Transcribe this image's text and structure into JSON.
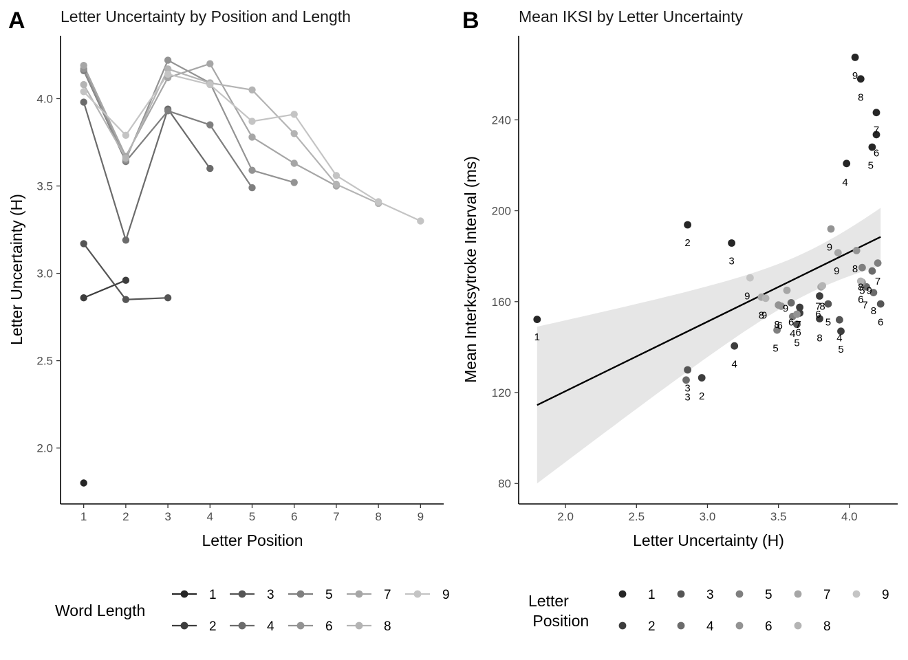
{
  "chart_data": [
    {
      "type": "line",
      "panel_label": "A",
      "title": "Letter Uncertainty by Position and Length",
      "xlabel": "Letter Position",
      "ylabel": "Letter Uncertainty (H)",
      "xlim": [
        0.45,
        9.55
      ],
      "ylim": [
        1.68,
        4.36
      ],
      "x_ticks": [
        1,
        2,
        3,
        4,
        5,
        6,
        7,
        8,
        9
      ],
      "y_ticks": [
        2.0,
        2.5,
        3.0,
        3.5,
        4.0
      ],
      "y_tick_labels": [
        "2.0",
        "2.5",
        "3.0",
        "3.5",
        "4.0"
      ],
      "grid": false,
      "legend_title": "Word Length",
      "legend_position": "bottom",
      "series": [
        {
          "name": "1",
          "color": "#262626",
          "x": [
            1
          ],
          "y": [
            1.8
          ]
        },
        {
          "name": "2",
          "color": "#3d3d3d",
          "x": [
            1,
            2
          ],
          "y": [
            2.86,
            2.96
          ]
        },
        {
          "name": "3",
          "color": "#555555",
          "x": [
            1,
            2,
            3
          ],
          "y": [
            3.17,
            2.85,
            2.86
          ]
        },
        {
          "name": "4",
          "color": "#6b6b6b",
          "x": [
            1,
            2,
            3,
            4
          ],
          "y": [
            3.98,
            3.19,
            3.94,
            3.6
          ]
        },
        {
          "name": "5",
          "color": "#7f7f7f",
          "x": [
            1,
            2,
            3,
            4,
            5
          ],
          "y": [
            4.16,
            3.64,
            3.93,
            3.85,
            3.49
          ]
        },
        {
          "name": "6",
          "color": "#939393",
          "x": [
            1,
            2,
            3,
            4,
            5,
            6
          ],
          "y": [
            4.17,
            3.65,
            4.22,
            4.09,
            3.59,
            3.52
          ]
        },
        {
          "name": "7",
          "color": "#a6a6a6",
          "x": [
            1,
            2,
            3,
            4,
            5,
            6,
            7
          ],
          "y": [
            4.19,
            3.67,
            4.12,
            4.2,
            3.78,
            3.63,
            3.5
          ]
        },
        {
          "name": "8",
          "color": "#b4b4b4",
          "x": [
            1,
            2,
            3,
            4,
            5,
            6,
            7,
            8
          ],
          "y": [
            4.08,
            3.66,
            4.17,
            4.09,
            4.05,
            3.8,
            3.51,
            3.4
          ]
        },
        {
          "name": "9",
          "color": "#c4c4c4",
          "x": [
            1,
            2,
            3,
            4,
            5,
            6,
            7,
            8,
            9
          ],
          "y": [
            4.04,
            3.79,
            4.14,
            4.08,
            3.87,
            3.91,
            3.56,
            3.41,
            3.3
          ]
        }
      ]
    },
    {
      "type": "scatter",
      "panel_label": "B",
      "title": "Mean IKSI by Letter Uncertainty",
      "xlabel": "Letter Uncertainty (H)",
      "ylabel": "Mean Interksytroke Interval (ms)",
      "xlim": [
        1.67,
        4.34
      ],
      "ylim": [
        71,
        277
      ],
      "x_ticks": [
        2.0,
        2.5,
        3.0,
        3.5,
        4.0
      ],
      "x_tick_labels": [
        "2.0",
        "2.5",
        "3.0",
        "3.5",
        "4.0"
      ],
      "y_ticks": [
        80,
        120,
        160,
        200,
        240
      ],
      "grid": false,
      "legend_title": "Letter\n Position",
      "legend_position": "bottom",
      "position_colors": {
        "1": "#262626",
        "2": "#3d3d3d",
        "3": "#555555",
        "4": "#6b6b6b",
        "5": "#7f7f7f",
        "6": "#939393",
        "7": "#a6a6a6",
        "8": "#b4b4b4",
        "9": "#c4c4c4"
      },
      "regression": {
        "x": [
          1.8,
          4.22
        ],
        "y": [
          114.5,
          188.5
        ],
        "ci_lower": [
          80.0,
          176.0
        ],
        "ci_upper": [
          149.0,
          201.5
        ]
      },
      "points": [
        {
          "x": 1.8,
          "y": 152.2,
          "pos": 1,
          "color": "#262626"
        },
        {
          "x": 2.86,
          "y": 193.8,
          "pos": 2,
          "color": "#262626"
        },
        {
          "x": 3.17,
          "y": 185.8,
          "pos": 3,
          "color": "#262626"
        },
        {
          "x": 3.98,
          "y": 220.8,
          "pos": 4,
          "color": "#262626"
        },
        {
          "x": 4.16,
          "y": 228.0,
          "pos": 5,
          "color": "#262626"
        },
        {
          "x": 4.19,
          "y": 233.5,
          "pos": 6,
          "color": "#262626"
        },
        {
          "x": 4.19,
          "y": 243.2,
          "pos": 7,
          "color": "#262626"
        },
        {
          "x": 4.08,
          "y": 258.0,
          "pos": 8,
          "color": "#262626"
        },
        {
          "x": 4.04,
          "y": 267.5,
          "pos": 9,
          "color": "#262626"
        },
        {
          "x": 2.96,
          "y": 126.5,
          "pos": 2,
          "color": "#3d3d3d"
        },
        {
          "x": 3.19,
          "y": 140.5,
          "pos": 4,
          "color": "#3d3d3d"
        },
        {
          "x": 3.94,
          "y": 147.0,
          "pos": 5,
          "color": "#3d3d3d"
        },
        {
          "x": 3.65,
          "y": 155.0,
          "pos": 6,
          "color": "#3d3d3d"
        },
        {
          "x": 3.65,
          "y": 157.5,
          "pos": 7,
          "color": "#3d3d3d"
        },
        {
          "x": 3.79,
          "y": 152.5,
          "pos": 8,
          "color": "#3d3d3d"
        },
        {
          "x": 3.79,
          "y": 162.5,
          "pos": 7,
          "color": "#3d3d3d"
        },
        {
          "x": 2.86,
          "y": 130.0,
          "pos": 3,
          "color": "#555555"
        },
        {
          "x": 3.93,
          "y": 152.0,
          "pos": 4,
          "color": "#555555"
        },
        {
          "x": 3.85,
          "y": 159.0,
          "pos": 5,
          "color": "#555555"
        },
        {
          "x": 3.63,
          "y": 150.0,
          "pos": 4,
          "color": "#555555"
        },
        {
          "x": 4.22,
          "y": 159.0,
          "pos": 6,
          "color": "#555555"
        },
        {
          "x": 2.85,
          "y": 125.5,
          "pos": 3,
          "color": "#6b6b6b"
        },
        {
          "x": 3.59,
          "y": 159.5,
          "pos": 6,
          "color": "#6b6b6b"
        },
        {
          "x": 4.12,
          "y": 166.5,
          "pos": 7,
          "color": "#6b6b6b"
        },
        {
          "x": 4.17,
          "y": 164.0,
          "pos": 8,
          "color": "#6b6b6b"
        },
        {
          "x": 4.16,
          "y": 173.5,
          "pos": 9,
          "color": "#6b6b6b"
        },
        {
          "x": 3.6,
          "y": 153.5,
          "pos": 6,
          "color": "#7f7f7f"
        },
        {
          "x": 3.49,
          "y": 147.5,
          "pos": 5,
          "color": "#7f7f7f"
        },
        {
          "x": 4.09,
          "y": 175.0,
          "pos": 8,
          "color": "#7f7f7f"
        },
        {
          "x": 4.2,
          "y": 177.0,
          "pos": 7,
          "color": "#7f7f7f"
        },
        {
          "x": 3.5,
          "y": 158.5,
          "pos": 9,
          "color": "#939393"
        },
        {
          "x": 3.52,
          "y": 158.0,
          "pos": 5,
          "color": "#939393"
        },
        {
          "x": 3.63,
          "y": 154.5,
          "pos": 6,
          "color": "#939393"
        },
        {
          "x": 3.87,
          "y": 192.0,
          "pos": 9,
          "color": "#939393"
        },
        {
          "x": 4.09,
          "y": 168.5,
          "pos": 8,
          "color": "#939393"
        },
        {
          "x": 4.05,
          "y": 182.5,
          "pos": 8,
          "color": "#939393"
        },
        {
          "x": 3.92,
          "y": 181.5,
          "pos": 9,
          "color": "#a6a6a6"
        },
        {
          "x": 3.8,
          "y": 166.5,
          "pos": 8,
          "color": "#a6a6a6"
        },
        {
          "x": 3.56,
          "y": 165.0,
          "pos": 9,
          "color": "#a6a6a6"
        },
        {
          "x": 3.38,
          "y": 162.0,
          "pos": 8,
          "color": "#a6a6a6"
        },
        {
          "x": 4.08,
          "y": 169.0,
          "pos": 6,
          "color": "#b4b4b4"
        },
        {
          "x": 3.81,
          "y": 167.0,
          "pos": 8,
          "color": "#b4b4b4"
        },
        {
          "x": 3.41,
          "y": 161.5,
          "pos": 9,
          "color": "#b4b4b4"
        },
        {
          "x": 3.3,
          "y": 170.5,
          "pos": 9,
          "color": "#c4c4c4"
        }
      ]
    }
  ],
  "panel_b_labels": [
    {
      "text": "1",
      "x": 1.8,
      "y": 144.5
    },
    {
      "text": "2",
      "x": 2.86,
      "y": 186.0
    },
    {
      "text": "3",
      "x": 3.17,
      "y": 178.0
    },
    {
      "text": "4",
      "x": 3.97,
      "y": 212.5
    },
    {
      "text": "5",
      "x": 4.15,
      "y": 220.0
    },
    {
      "text": "6",
      "x": 4.19,
      "y": 225.5
    },
    {
      "text": "7",
      "x": 4.19,
      "y": 235.5
    },
    {
      "text": "8",
      "x": 4.08,
      "y": 250.0
    },
    {
      "text": "9",
      "x": 4.04,
      "y": 259.5
    },
    {
      "text": "3",
      "x": 2.86,
      "y": 122.0
    },
    {
      "text": "3",
      "x": 2.86,
      "y": 118.0
    },
    {
      "text": "2",
      "x": 2.96,
      "y": 118.5
    },
    {
      "text": "4",
      "x": 3.19,
      "y": 132.5
    },
    {
      "text": "9",
      "x": 3.28,
      "y": 162.5
    },
    {
      "text": "9",
      "x": 3.4,
      "y": 154.0
    },
    {
      "text": "8",
      "x": 3.38,
      "y": 154.0
    },
    {
      "text": "9",
      "x": 3.55,
      "y": 157.0
    },
    {
      "text": "5",
      "x": 3.48,
      "y": 139.5
    },
    {
      "text": "8",
      "x": 3.49,
      "y": 150.0
    },
    {
      "text": "6",
      "x": 3.51,
      "y": 149.5
    },
    {
      "text": "6",
      "x": 3.59,
      "y": 151.0
    },
    {
      "text": "4",
      "x": 3.6,
      "y": 146.0
    },
    {
      "text": "7",
      "x": 3.64,
      "y": 150.0
    },
    {
      "text": "6",
      "x": 3.64,
      "y": 146.5
    },
    {
      "text": "5",
      "x": 3.63,
      "y": 142.0
    },
    {
      "text": "7",
      "x": 3.78,
      "y": 158.0
    },
    {
      "text": "8",
      "x": 3.81,
      "y": 158.0
    },
    {
      "text": "6",
      "x": 3.78,
      "y": 154.5
    },
    {
      "text": "5",
      "x": 3.85,
      "y": 151.0
    },
    {
      "text": "8",
      "x": 3.79,
      "y": 144.0
    },
    {
      "text": "4",
      "x": 3.93,
      "y": 144.0
    },
    {
      "text": "5",
      "x": 3.94,
      "y": 139.0
    },
    {
      "text": "9",
      "x": 3.86,
      "y": 184.0
    },
    {
      "text": "9",
      "x": 3.91,
      "y": 173.5
    },
    {
      "text": "8",
      "x": 4.04,
      "y": 174.5
    },
    {
      "text": "8",
      "x": 4.08,
      "y": 166.5
    },
    {
      "text": "5",
      "x": 4.09,
      "y": 165.0
    },
    {
      "text": "6",
      "x": 4.08,
      "y": 161.0
    },
    {
      "text": "7",
      "x": 4.11,
      "y": 158.5
    },
    {
      "text": "9",
      "x": 4.14,
      "y": 165.0
    },
    {
      "text": "7",
      "x": 4.2,
      "y": 169.0
    },
    {
      "text": "8",
      "x": 4.17,
      "y": 156.0
    },
    {
      "text": "6",
      "x": 4.22,
      "y": 151.0
    }
  ],
  "legend_a": {
    "title": "Word Length",
    "items": [
      {
        "label": "1",
        "color": "#262626"
      },
      {
        "label": "2",
        "color": "#3d3d3d"
      },
      {
        "label": "3",
        "color": "#555555"
      },
      {
        "label": "4",
        "color": "#6b6b6b"
      },
      {
        "label": "5",
        "color": "#7f7f7f"
      },
      {
        "label": "6",
        "color": "#939393"
      },
      {
        "label": "7",
        "color": "#a6a6a6"
      },
      {
        "label": "8",
        "color": "#b4b4b4"
      },
      {
        "label": "9",
        "color": "#c4c4c4"
      }
    ]
  },
  "legend_b": {
    "title_lines": [
      "Letter",
      " Position"
    ],
    "items": [
      {
        "label": "1",
        "color": "#262626"
      },
      {
        "label": "2",
        "color": "#3d3d3d"
      },
      {
        "label": "3",
        "color": "#555555"
      },
      {
        "label": "4",
        "color": "#6b6b6b"
      },
      {
        "label": "5",
        "color": "#7f7f7f"
      },
      {
        "label": "6",
        "color": "#939393"
      },
      {
        "label": "7",
        "color": "#a6a6a6"
      },
      {
        "label": "8",
        "color": "#b4b4b4"
      },
      {
        "label": "9",
        "color": "#c4c4c4"
      }
    ]
  },
  "colors": {
    "axis": "#000000",
    "ci_band": "#e6e6e6",
    "regression_line": "#000000"
  }
}
